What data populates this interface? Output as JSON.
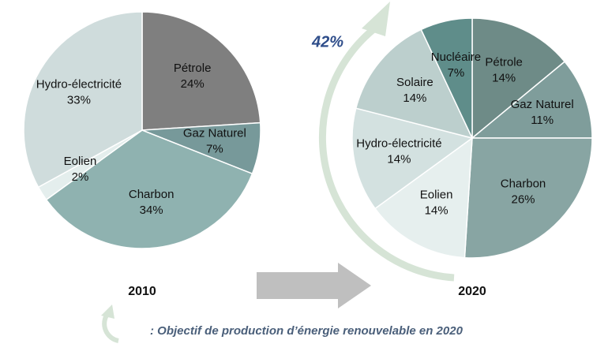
{
  "chart_data": [
    {
      "type": "pie",
      "title": "2010",
      "categories": [
        "Pétrole",
        "Gaz Naturel",
        "Charbon",
        "Eolien",
        "Hydro-électricité"
      ],
      "values": [
        24,
        7,
        34,
        2,
        33
      ],
      "value_labels": [
        "24%",
        "7%",
        "34%",
        "2%",
        "33%"
      ],
      "colors": [
        "#7f7f7f",
        "#77999a",
        "#8fb2b0",
        "#e4eeed",
        "#cfdcdc"
      ]
    },
    {
      "type": "pie",
      "title": "2020",
      "categories": [
        "Pétrole",
        "Gaz Naturel",
        "Charbon",
        "Eolien",
        "Hydro-électricité",
        "Solaire",
        "Nucléaire"
      ],
      "values": [
        14,
        11,
        26,
        14,
        14,
        14,
        7
      ],
      "value_labels": [
        "14%",
        "11%",
        "26%",
        "14%",
        "14%",
        "14%",
        "7%"
      ],
      "colors": [
        "#6e8b87",
        "#7f9d9b",
        "#88a5a3",
        "#e6efee",
        "#d3e1e0",
        "#bccfcd",
        "#5f8d8a"
      ]
    }
  ],
  "annotation": "42%",
  "legend_text": ": Objectif de production d’énergie renouvelable en 2020"
}
